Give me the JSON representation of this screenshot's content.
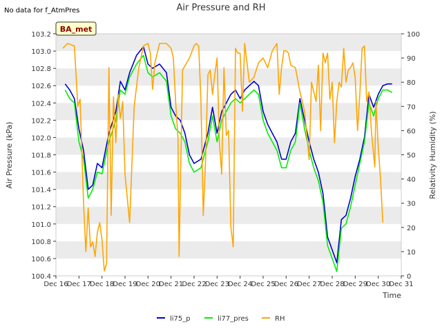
{
  "corner_note": "No data for f_AtmPres",
  "chart_data": {
    "type": "line",
    "title": "Air Pressure and RH",
    "xlabel": "Time",
    "ylabel_left": "Air Pressure (kPa)",
    "ylabel_right": "Relativity Humidity (%)",
    "site_badge": "BA_met",
    "xticks": [
      "Dec 16",
      "Dec 17",
      "Dec 18",
      "Dec 19",
      "Dec 20",
      "Dec 21",
      "Dec 22",
      "Dec 23",
      "Dec 24",
      "Dec 25",
      "Dec 26",
      "Dec 27",
      "Dec 28",
      "Dec 29",
      "Dec 30",
      "Dec 31"
    ],
    "x_range_days": [
      16,
      31
    ],
    "ylim_left": [
      100.4,
      103.2
    ],
    "yticks_left": [
      "100.4",
      "100.6",
      "100.8",
      "101.0",
      "101.2",
      "101.4",
      "101.6",
      "101.8",
      "102.0",
      "102.2",
      "102.4",
      "102.6",
      "102.8",
      "103.0",
      "103.2"
    ],
    "ylim_right": [
      0,
      100
    ],
    "yticks_right": [
      "0",
      "10",
      "20",
      "30",
      "40",
      "50",
      "60",
      "70",
      "80",
      "90",
      "100"
    ],
    "grid": "horizontal bands",
    "legend": "bottom-center",
    "series": [
      {
        "name": "li75_p",
        "color": "#0000cc",
        "axis": "left",
        "x": [
          16.4,
          16.6,
          16.8,
          17.0,
          17.2,
          17.4,
          17.6,
          17.8,
          18.0,
          18.3,
          18.6,
          18.8,
          19.0,
          19.2,
          19.5,
          19.8,
          20.0,
          20.2,
          20.5,
          20.8,
          21.0,
          21.2,
          21.4,
          21.6,
          21.8,
          22.0,
          22.3,
          22.6,
          22.8,
          23.0,
          23.2,
          23.4,
          23.6,
          23.8,
          24.0,
          24.2,
          24.4,
          24.6,
          24.8,
          25.0,
          25.2,
          25.4,
          25.6,
          25.8,
          26.0,
          26.2,
          26.4,
          26.6,
          26.8,
          27.0,
          27.2,
          27.4,
          27.6,
          27.8,
          28.0,
          28.2,
          28.4,
          28.6,
          28.8,
          29.0,
          29.2,
          29.4,
          29.6,
          29.8,
          30.0,
          30.2,
          30.4,
          30.6
        ],
        "y": [
          102.62,
          102.55,
          102.45,
          102.1,
          101.85,
          101.4,
          101.45,
          101.7,
          101.65,
          102.05,
          102.3,
          102.65,
          102.55,
          102.75,
          102.95,
          103.05,
          102.85,
          102.8,
          102.85,
          102.75,
          102.35,
          102.25,
          102.2,
          102.05,
          101.8,
          101.7,
          101.75,
          102.05,
          102.35,
          102.05,
          102.3,
          102.4,
          102.5,
          102.55,
          102.45,
          102.55,
          102.6,
          102.65,
          102.6,
          102.3,
          102.15,
          102.05,
          101.95,
          101.75,
          101.75,
          101.95,
          102.05,
          102.45,
          102.2,
          101.95,
          101.75,
          101.6,
          101.35,
          100.85,
          100.7,
          100.55,
          101.05,
          101.1,
          101.3,
          101.55,
          101.75,
          102.0,
          102.5,
          102.35,
          102.5,
          102.6,
          102.62,
          102.62
        ]
      },
      {
        "name": "li77_pres",
        "color": "#00ee00",
        "axis": "left",
        "x": [
          16.4,
          16.6,
          16.8,
          17.0,
          17.2,
          17.4,
          17.6,
          17.8,
          18.0,
          18.3,
          18.6,
          18.8,
          19.0,
          19.2,
          19.5,
          19.8,
          20.0,
          20.2,
          20.5,
          20.8,
          21.0,
          21.2,
          21.4,
          21.6,
          21.8,
          22.0,
          22.3,
          22.6,
          22.8,
          23.0,
          23.2,
          23.4,
          23.6,
          23.8,
          24.0,
          24.2,
          24.4,
          24.6,
          24.8,
          25.0,
          25.2,
          25.4,
          25.6,
          25.8,
          26.0,
          26.2,
          26.4,
          26.6,
          26.8,
          27.0,
          27.2,
          27.4,
          27.6,
          27.8,
          28.0,
          28.2,
          28.4,
          28.6,
          28.8,
          29.0,
          29.2,
          29.4,
          29.6,
          29.8,
          30.0,
          30.2,
          30.4,
          30.6
        ],
        "y": [
          102.55,
          102.45,
          102.4,
          101.95,
          101.75,
          101.3,
          101.4,
          101.6,
          101.58,
          101.95,
          102.2,
          102.55,
          102.5,
          102.7,
          102.85,
          102.95,
          102.75,
          102.7,
          102.75,
          102.65,
          102.25,
          102.1,
          102.05,
          101.95,
          101.7,
          101.6,
          101.65,
          101.95,
          102.25,
          101.95,
          102.2,
          102.3,
          102.4,
          102.45,
          102.4,
          102.45,
          102.5,
          102.55,
          102.5,
          102.2,
          102.05,
          101.95,
          101.85,
          101.65,
          101.65,
          101.85,
          101.95,
          102.4,
          102.1,
          101.85,
          101.65,
          101.5,
          101.25,
          100.75,
          100.6,
          100.45,
          100.95,
          101.0,
          101.2,
          101.45,
          101.7,
          101.95,
          102.4,
          102.25,
          102.45,
          102.55,
          102.55,
          102.52
        ]
      },
      {
        "name": "RH",
        "color": "#ffa500",
        "axis": "right",
        "x": [
          16.3,
          16.5,
          16.8,
          16.95,
          17.05,
          17.2,
          17.3,
          17.4,
          17.5,
          17.6,
          17.7,
          17.8,
          17.9,
          18.0,
          18.1,
          18.2,
          18.3,
          18.4,
          18.5,
          18.6,
          18.7,
          18.8,
          18.9,
          19.0,
          19.2,
          19.4,
          19.6,
          19.8,
          20.0,
          20.1,
          20.2,
          20.3,
          20.5,
          20.8,
          21.0,
          21.1,
          21.2,
          21.3,
          21.35,
          21.5,
          21.8,
          22.0,
          22.1,
          22.2,
          22.3,
          22.4,
          22.5,
          22.6,
          22.7,
          22.8,
          22.9,
          23.0,
          23.1,
          23.2,
          23.3,
          23.4,
          23.5,
          23.6,
          23.7,
          23.8,
          23.9,
          24.0,
          24.1,
          24.2,
          24.4,
          24.6,
          24.8,
          25.0,
          25.1,
          25.2,
          25.4,
          25.6,
          25.7,
          25.8,
          25.9,
          26.0,
          26.1,
          26.2,
          26.4,
          26.6,
          26.8,
          27.0,
          27.1,
          27.2,
          27.3,
          27.4,
          27.5,
          27.6,
          27.7,
          27.8,
          27.9,
          28.0,
          28.1,
          28.2,
          28.3,
          28.4,
          28.5,
          28.6,
          28.7,
          28.8,
          28.9,
          29.0,
          29.1,
          29.2,
          29.3,
          29.4,
          29.5,
          29.6,
          29.7,
          29.8,
          29.85,
          29.9,
          30.0,
          30.1,
          30.2
        ],
        "y": [
          94,
          96,
          95,
          70,
          73,
          30,
          10,
          28,
          12,
          14,
          8,
          18,
          22,
          15,
          2,
          5,
          86,
          25,
          74,
          55,
          75,
          65,
          72,
          42,
          22,
          70,
          86,
          95,
          96,
          92,
          77,
          88,
          96,
          96,
          94,
          90,
          72,
          57,
          8,
          85,
          90,
          95,
          96,
          95,
          72,
          25,
          48,
          83,
          85,
          75,
          83,
          90,
          55,
          42,
          86,
          58,
          60,
          20,
          12,
          94,
          92,
          92,
          68,
          96,
          80,
          82,
          88,
          90,
          88,
          86,
          93,
          96,
          75,
          86,
          93,
          93,
          92,
          87,
          86,
          76,
          68,
          48,
          80,
          76,
          72,
          87,
          60,
          92,
          88,
          92,
          73,
          80,
          55,
          72,
          80,
          78,
          94,
          80,
          85,
          86,
          88,
          82,
          60,
          75,
          94,
          95,
          72,
          76,
          60,
          50,
          45,
          72,
          53,
          40,
          22
        ]
      }
    ]
  },
  "legend_items": [
    {
      "label": "li75_p",
      "color": "#0000cc"
    },
    {
      "label": "li77_pres",
      "color": "#00ee00"
    },
    {
      "label": "RH",
      "color": "#ffa500"
    }
  ]
}
